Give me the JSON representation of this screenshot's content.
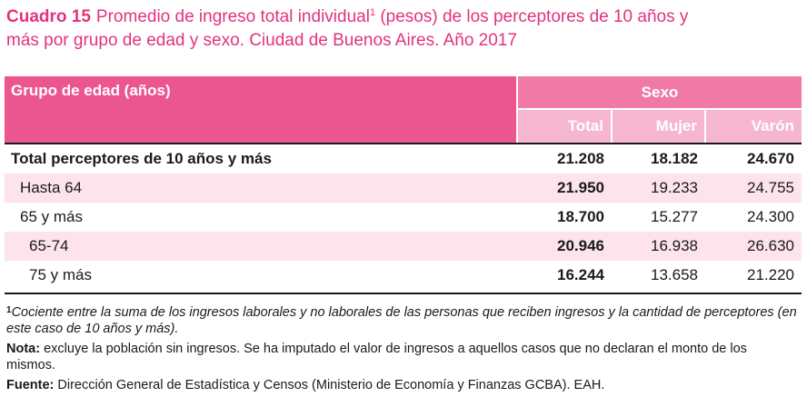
{
  "title": {
    "label": "Cuadro 15",
    "text_line1": "Promedio de ingreso total individual",
    "footnote_marker": "1",
    "text_line1_rest": " (pesos) de los perceptores de 10 años y",
    "text_line2": "más por grupo de edad y sexo. Ciudad de Buenos Aires. Año 2017"
  },
  "table": {
    "header": {
      "group_label": "Grupo de edad (años)",
      "sexo_label": "Sexo",
      "columns": [
        "Total",
        "Mujer",
        "Varón"
      ]
    },
    "rows": [
      {
        "label": "Total perceptores de 10 años y más",
        "total": "21.208",
        "mujer": "18.182",
        "varon": "24.670"
      },
      {
        "label": "Hasta 64",
        "total": "21.950",
        "mujer": "19.233",
        "varon": "24.755"
      },
      {
        "label": "65 y más",
        "total": "18.700",
        "mujer": "15.277",
        "varon": "24.300"
      },
      {
        "label": "65-74",
        "total": "20.946",
        "mujer": "16.938",
        "varon": "26.630"
      },
      {
        "label": "75 y más",
        "total": "16.244",
        "mujer": "13.658",
        "varon": "21.220"
      }
    ]
  },
  "notes": {
    "footnote_marker": "1",
    "footnote_text": "Cociente entre la suma de los ingresos laborales y no laborales de las personas que reciben ingresos y la cantidad de perceptores (en este caso de 10 años y más).",
    "nota_label": "Nota:",
    "nota_text": " excluye la población sin ingresos. Se ha imputado el valor de ingresos a aquellos casos que no declaran el monto de los mismos.",
    "fuente_label": "Fuente:",
    "fuente_text": " Dirección General de Estadística y Censos (Ministerio de Economía y Finanzas GCBA). EAH."
  }
}
